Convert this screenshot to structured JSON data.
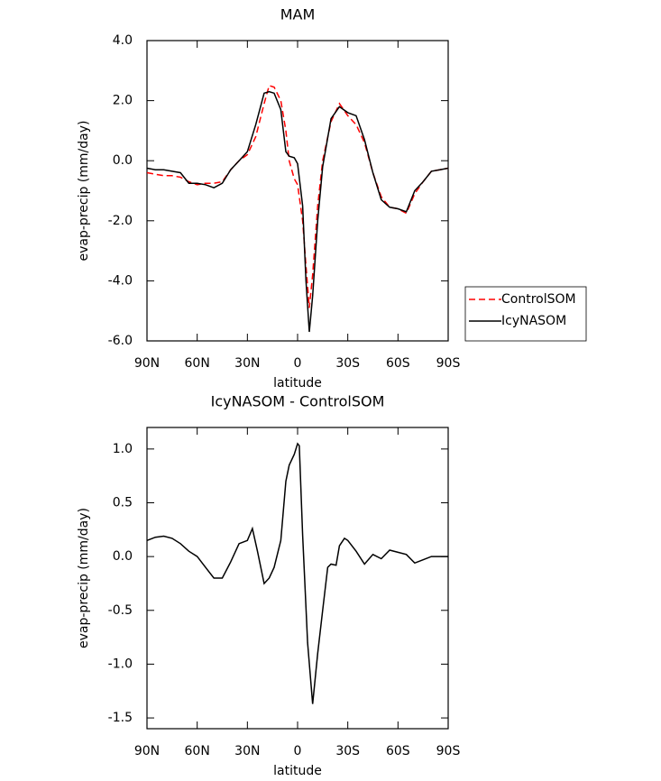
{
  "chart_data": [
    {
      "type": "line",
      "title": "MAM",
      "x_label": "latitude",
      "y_label": "evap-precip (mm/day)",
      "x": [
        90,
        85,
        80,
        75,
        70,
        65,
        60,
        55,
        50,
        45,
        40,
        35,
        30,
        25,
        20,
        17,
        14,
        10,
        7,
        5,
        2,
        0,
        -3,
        -5,
        -7,
        -9,
        -12,
        -15,
        -20,
        -25,
        -30,
        -35,
        -40,
        -45,
        -50,
        -55,
        -60,
        -65,
        -70,
        -75,
        -80,
        -85,
        -90
      ],
      "series": [
        {
          "name": "ControlSOM",
          "color": "#ff0000",
          "style": "dashed",
          "values": [
            -0.4,
            -0.45,
            -0.5,
            -0.5,
            -0.55,
            -0.7,
            -0.8,
            -0.75,
            -0.75,
            -0.7,
            -0.3,
            0.0,
            0.2,
            0.8,
            1.9,
            2.5,
            2.45,
            2.0,
            1.0,
            0.0,
            -0.6,
            -0.8,
            -2.0,
            -3.5,
            -4.9,
            -3.8,
            -1.5,
            0.0,
            1.3,
            1.9,
            1.5,
            1.2,
            0.6,
            -0.4,
            -1.2,
            -1.55,
            -1.6,
            -1.75,
            -1.1,
            -0.7,
            -0.35,
            -0.3,
            -0.25
          ]
        },
        {
          "name": "IcyNASOM",
          "color": "#000000",
          "style": "solid",
          "values": [
            -0.25,
            -0.3,
            -0.3,
            -0.35,
            -0.4,
            -0.75,
            -0.75,
            -0.8,
            -0.9,
            -0.75,
            -0.3,
            0.0,
            0.3,
            1.2,
            2.25,
            2.3,
            2.25,
            1.7,
            0.3,
            0.15,
            0.1,
            -0.1,
            -1.5,
            -4.0,
            -5.7,
            -4.5,
            -2.0,
            -0.2,
            1.4,
            1.8,
            1.6,
            1.5,
            0.7,
            -0.4,
            -1.3,
            -1.55,
            -1.6,
            -1.7,
            -1.0,
            -0.7,
            -0.35,
            -0.3,
            -0.25
          ]
        }
      ],
      "xlim": [
        90,
        -90
      ],
      "xticks": [
        {
          "value": 90,
          "label": "90N"
        },
        {
          "value": 60,
          "label": "60N"
        },
        {
          "value": 30,
          "label": "30N"
        },
        0,
        {
          "value": -30,
          "label": "30S"
        },
        {
          "value": -60,
          "label": "60S"
        },
        {
          "value": -90,
          "label": "90S"
        }
      ],
      "ylim": [
        -6,
        4
      ],
      "yticks": [
        {
          "value": -6,
          "label": "-6.0"
        },
        {
          "value": -4,
          "label": "-4.0"
        },
        {
          "value": -2,
          "label": "-2.0"
        },
        {
          "value": 0,
          "label": "0.0"
        },
        {
          "value": 2,
          "label": "2.0"
        },
        {
          "value": 4,
          "label": "4.0"
        }
      ],
      "legend": "outside-right"
    },
    {
      "type": "line",
      "title": "IcyNASOM - ControlSOM",
      "x_label": "latitude",
      "y_label": "evap-precip (mm/day)",
      "x": [
        90,
        85,
        80,
        75,
        70,
        65,
        60,
        55,
        50,
        45,
        40,
        35,
        30,
        27,
        24,
        20,
        17,
        14,
        10,
        7,
        5,
        2,
        0,
        -1,
        -3,
        -6,
        -9,
        -12,
        -15,
        -18,
        -20,
        -23,
        -25,
        -28,
        -30,
        -35,
        -40,
        -45,
        -50,
        -55,
        -60,
        -65,
        -70,
        -75,
        -80,
        -90
      ],
      "series": [
        {
          "color": "#000000",
          "style": "solid",
          "values": [
            0.15,
            0.18,
            0.19,
            0.17,
            0.12,
            0.05,
            0.0,
            -0.1,
            -0.2,
            -0.2,
            -0.05,
            0.12,
            0.15,
            0.26,
            0.05,
            -0.25,
            -0.2,
            -0.1,
            0.15,
            0.7,
            0.85,
            0.95,
            1.05,
            1.03,
            0.2,
            -0.8,
            -1.37,
            -0.9,
            -0.5,
            -0.1,
            -0.07,
            -0.08,
            0.1,
            0.17,
            0.15,
            0.05,
            -0.07,
            0.02,
            -0.02,
            0.06,
            0.04,
            0.02,
            -0.06,
            -0.03,
            0.0,
            0.0
          ]
        }
      ],
      "xlim": [
        90,
        -90
      ],
      "xticks": [
        {
          "value": 90,
          "label": "90N"
        },
        {
          "value": 60,
          "label": "60N"
        },
        {
          "value": 30,
          "label": "30N"
        },
        0,
        {
          "value": -30,
          "label": "30S"
        },
        {
          "value": -60,
          "label": "60S"
        },
        {
          "value": -90,
          "label": "90S"
        }
      ],
      "ylim": [
        -1.6,
        1.2
      ],
      "yticks": [
        {
          "value": -1.5,
          "label": "-1.5"
        },
        {
          "value": -1,
          "label": "-1.0"
        },
        {
          "value": -0.5,
          "label": "-0.5"
        },
        {
          "value": 0,
          "label": "0.0"
        },
        {
          "value": 0.5,
          "label": "0.5"
        },
        {
          "value": 1,
          "label": "1.0"
        }
      ]
    }
  ]
}
